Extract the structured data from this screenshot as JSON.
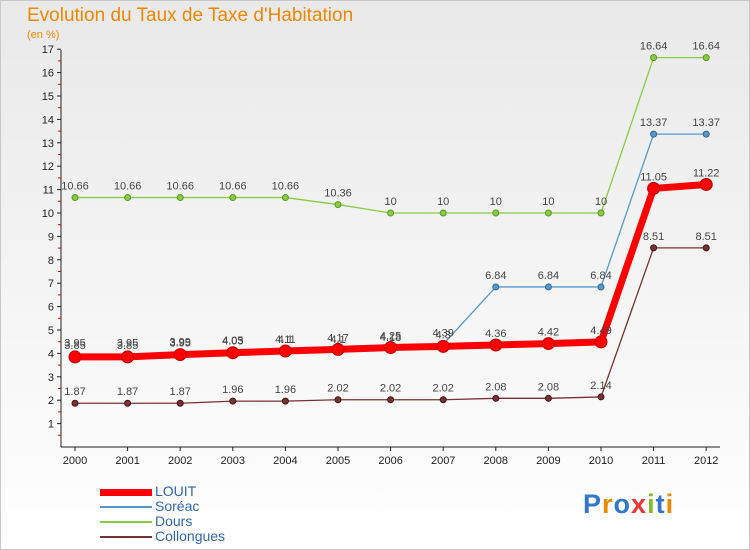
{
  "chart_data": {
    "type": "line",
    "title": "Evolution du Taux de Taxe d'Habitation",
    "subtitle": "(en %)",
    "xlabel": "",
    "ylabel": "",
    "x": [
      "2000",
      "2001",
      "2002",
      "2003",
      "2004",
      "2005",
      "2006",
      "2007",
      "2008",
      "2009",
      "2010",
      "2011",
      "2012"
    ],
    "ylim": [
      0,
      17
    ],
    "yticks": [
      "1",
      "2",
      "3",
      "4",
      "5",
      "6",
      "7",
      "8",
      "9",
      "10",
      "11",
      "12",
      "13",
      "14",
      "15",
      "16",
      "17"
    ],
    "grid": false,
    "legend_position": "bottom-left",
    "series": [
      {
        "name": "LOUIT",
        "color": "#ff0000",
        "values": [
          3.85,
          3.85,
          3.95,
          4.03,
          4.1,
          4.17,
          4.25,
          4.3,
          4.36,
          4.42,
          4.49,
          11.05,
          11.22
        ],
        "labels": [
          "3.85",
          "3.85",
          "3.95",
          "4.03",
          "4.1",
          "4.17",
          "4.25",
          "4.3",
          "4.36",
          "4.42",
          "4.49",
          "11.05",
          "11.22"
        ]
      },
      {
        "name": "Soréac",
        "color": "#5599cc",
        "values": [
          3.95,
          3.95,
          3.99,
          4.05,
          4.11,
          4.1,
          4.18,
          4.39,
          6.84,
          6.84,
          6.84,
          13.37,
          13.37
        ],
        "labels": [
          "3.95",
          "3.95",
          "3.99",
          "4.05",
          "4.11",
          "4.1",
          "4.18",
          "4.39",
          "6.84",
          "6.84",
          "6.84",
          "13.37",
          "13.37"
        ]
      },
      {
        "name": "Dours",
        "color": "#88cc44",
        "values": [
          10.66,
          10.66,
          10.66,
          10.66,
          10.66,
          10.36,
          10,
          10,
          10,
          10,
          10,
          16.64,
          16.64
        ],
        "labels": [
          "10.66",
          "10.66",
          "10.66",
          "10.66",
          "10.66",
          "10.36",
          "10",
          "10",
          "10",
          "10",
          "10",
          "16.64",
          "16.64"
        ]
      },
      {
        "name": "Collongues",
        "color": "#773333",
        "values": [
          1.87,
          1.87,
          1.87,
          1.96,
          1.96,
          2.02,
          2.02,
          2.02,
          2.08,
          2.08,
          2.14,
          8.51,
          8.51
        ],
        "labels": [
          "1.87",
          "1.87",
          "1.87",
          "1.96",
          "1.96",
          "2.02",
          "2.02",
          "2.02",
          "2.08",
          "2.08",
          "2.14",
          "8.51",
          "8.51"
        ]
      }
    ]
  },
  "logo": {
    "text": "Proxiti",
    "letters": [
      "P",
      "r",
      "o",
      "x",
      "i",
      "t",
      "i"
    ],
    "colors": [
      "#3377cc",
      "#ee8800",
      "#3377cc",
      "#ee3333",
      "#88bb22",
      "#3377cc",
      "#ee8800"
    ]
  }
}
